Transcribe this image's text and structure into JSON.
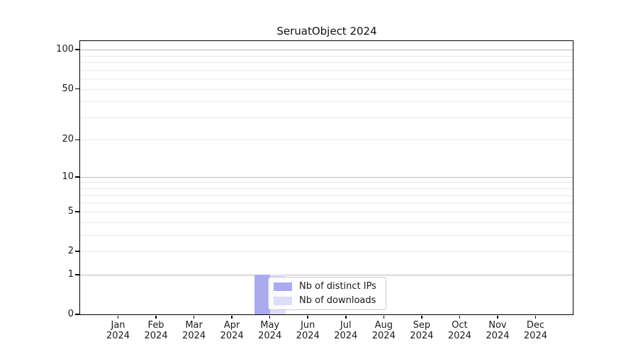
{
  "figure": {
    "background": "#ffffff",
    "text_color": "#1a1a1a"
  },
  "chart_data": {
    "type": "bar",
    "title": "SeruatObject 2024",
    "categories": [
      "Jan 2024",
      "Feb 2024",
      "Mar 2024",
      "Apr 2024",
      "May 2024",
      "Jun 2024",
      "Jul 2024",
      "Aug 2024",
      "Sep 2024",
      "Oct 2024",
      "Nov 2024",
      "Dec 2024"
    ],
    "x": {
      "months": [
        "Jan",
        "Feb",
        "Mar",
        "Apr",
        "May",
        "Jun",
        "Jul",
        "Aug",
        "Sep",
        "Oct",
        "Nov",
        "Dec"
      ],
      "year": "2024"
    },
    "series": [
      {
        "name": "Nb of distinct IPs",
        "color": "#aaaaee",
        "values": [
          0,
          0,
          0,
          0,
          1,
          0,
          0,
          0,
          0,
          0,
          0,
          0
        ]
      },
      {
        "name": "Nb of downloads",
        "color": "#ddddf7",
        "values": [
          0,
          0,
          0,
          0,
          1,
          0,
          0,
          0,
          0,
          0,
          0,
          0
        ]
      }
    ],
    "yscale": "log1p",
    "ylim": [
      0,
      115
    ],
    "yticks": [
      0,
      1,
      2,
      5,
      10,
      20,
      50,
      100
    ],
    "grid": {
      "orientation": "horizontal",
      "major": [
        1,
        10,
        100
      ],
      "minor": [
        2,
        3,
        4,
        5,
        6,
        7,
        8,
        9,
        20,
        30,
        40,
        50,
        60,
        70,
        80,
        90
      ],
      "major_color": "#b9b9b9",
      "minor_color": "#e8e8e8"
    },
    "legend": {
      "position": "inside-bottom-center-left",
      "items": [
        "Nb of distinct IPs",
        "Nb of downloads"
      ]
    }
  }
}
